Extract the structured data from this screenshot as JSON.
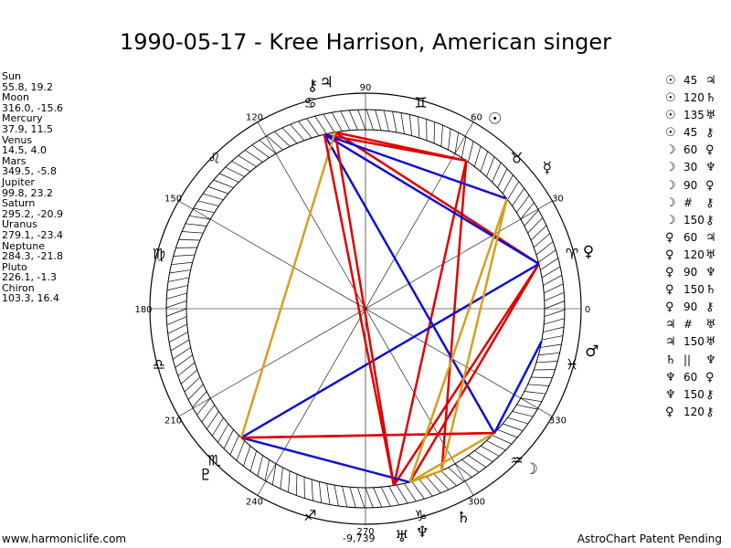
{
  "title": "1990-05-17 - Kree Harrison, American singer",
  "planets": [
    {
      "name": "Sun",
      "coords": "55.8, 19.2",
      "glyph": "☉"
    },
    {
      "name": "Moon",
      "coords": "316.0, -15.6",
      "glyph": "☽"
    },
    {
      "name": "Mercury",
      "coords": "37.9, 11.5",
      "glyph": "☿"
    },
    {
      "name": "Venus",
      "coords": "14.5, 4.0",
      "glyph": "♀"
    },
    {
      "name": "Mars",
      "coords": "349.5, -5.8",
      "glyph": "♂"
    },
    {
      "name": "Jupiter",
      "coords": "99.8, 23.2",
      "glyph": "♃"
    },
    {
      "name": "Saturn",
      "coords": "295.2, -20.9",
      "glyph": "♄"
    },
    {
      "name": "Uranus",
      "coords": "279.1, -23.4",
      "glyph": "♅"
    },
    {
      "name": "Neptune",
      "coords": "284.3, -21.8",
      "glyph": "♆"
    },
    {
      "name": "Pluto",
      "coords": "226.1, -1.3",
      "glyph": "♇"
    },
    {
      "name": "Chiron",
      "coords": "103.3, 16.4",
      "glyph": "⚷"
    }
  ],
  "aspects": [
    {
      "p1": "☉",
      "val": "45",
      "p2": "♃"
    },
    {
      "p1": "☉",
      "val": "120",
      "p2": "♄"
    },
    {
      "p1": "☉",
      "val": "135",
      "p2": "♅"
    },
    {
      "p1": "☉",
      "val": "45",
      "p2": "⚷"
    },
    {
      "p1": "☽",
      "val": "60",
      "p2": "♀"
    },
    {
      "p1": "☽",
      "val": "30",
      "p2": "♆"
    },
    {
      "p1": "☽",
      "val": "90",
      "p2": "♀"
    },
    {
      "p1": "☽",
      "val": "#",
      "p2": "⚷"
    },
    {
      "p1": "☽",
      "val": "150",
      "p2": "⚷"
    },
    {
      "p1": "♀",
      "val": "60",
      "p2": "♃"
    },
    {
      "p1": "♀",
      "val": "120",
      "p2": "♅"
    },
    {
      "p1": "♀",
      "val": "90",
      "p2": "♆"
    },
    {
      "p1": "♀",
      "val": "150",
      "p2": "♄"
    },
    {
      "p1": "♀",
      "val": "90",
      "p2": "⚷"
    },
    {
      "p1": "♃",
      "val": "#",
      "p2": "♅"
    },
    {
      "p1": "♃",
      "val": "150",
      "p2": "♅"
    },
    {
      "p1": "♄",
      "val": "||",
      "p2": "♆"
    },
    {
      "p1": "♆",
      "val": "60",
      "p2": "♀"
    },
    {
      "p1": "♆",
      "val": "150",
      "p2": "⚷"
    },
    {
      "p1": "♀",
      "val": "120",
      "p2": "⚷"
    }
  ],
  "degree_labels": [
    "0",
    "30",
    "60",
    "90",
    "120",
    "150",
    "180",
    "210",
    "240",
    "270",
    "300",
    "330"
  ],
  "score": "-9,739",
  "footer_left": "www.harmoniclife.com",
  "footer_right": "AstroChart Patent Pending",
  "chart_data": {
    "type": "astrology-wheel",
    "planet_longitudes": {
      "Sun": 55.8,
      "Moon": 316.0,
      "Mercury": 37.9,
      "Venus": 14.5,
      "Mars": 349.5,
      "Jupiter": 99.8,
      "Saturn": 295.2,
      "Uranus": 279.1,
      "Neptune": 284.3,
      "Pluto": 226.1,
      "Chiron": 103.3
    },
    "sign_glyphs": [
      "♈",
      "♉",
      "♊",
      "♋",
      "♌",
      "♍",
      "♎",
      "♏",
      "♐",
      "♑",
      "♒",
      "♓"
    ],
    "aspect_lines": [
      {
        "from": "Sun",
        "to": "Jupiter",
        "color": "#e00000",
        "style": "solid"
      },
      {
        "from": "Sun",
        "to": "Saturn",
        "color": "#e00000",
        "style": "solid"
      },
      {
        "from": "Sun",
        "to": "Uranus",
        "color": "#e00000",
        "style": "solid"
      },
      {
        "from": "Sun",
        "to": "Chiron",
        "color": "#e00000",
        "style": "solid"
      },
      {
        "from": "Moon",
        "to": "Pluto",
        "color": "#e00000",
        "style": "solid"
      },
      {
        "from": "Moon",
        "to": "Neptune",
        "color": "#d4a020",
        "style": "solid"
      },
      {
        "from": "Moon",
        "to": "Chiron",
        "color": "#e00000",
        "style": "dotted"
      },
      {
        "from": "Moon",
        "to": "Chiron",
        "color": "#1010d0",
        "style": "solid"
      },
      {
        "from": "Moon",
        "to": "Mars",
        "color": "#1010d0",
        "style": "solid"
      },
      {
        "from": "Venus",
        "to": "Jupiter",
        "color": "#e00000",
        "style": "solid"
      },
      {
        "from": "Venus",
        "to": "Uranus",
        "color": "#e00000",
        "style": "solid"
      },
      {
        "from": "Venus",
        "to": "Neptune",
        "color": "#e00000",
        "style": "solid"
      },
      {
        "from": "Venus",
        "to": "Pluto",
        "color": "#1010d0",
        "style": "solid"
      },
      {
        "from": "Venus",
        "to": "Chiron",
        "color": "#1010d0",
        "style": "solid"
      },
      {
        "from": "Jupiter",
        "to": "Uranus",
        "color": "#e00000",
        "style": "dotted"
      },
      {
        "from": "Jupiter",
        "to": "Uranus",
        "color": "#e00000",
        "style": "solid"
      },
      {
        "from": "Saturn",
        "to": "Neptune",
        "color": "#d4a020",
        "style": "solid"
      },
      {
        "from": "Neptune",
        "to": "Pluto",
        "color": "#1010d0",
        "style": "solid"
      },
      {
        "from": "Mercury",
        "to": "Chiron",
        "color": "#1010d0",
        "style": "solid"
      },
      {
        "from": "Mercury",
        "to": "Saturn",
        "color": "#d4a020",
        "style": "solid"
      },
      {
        "from": "Pluto",
        "to": "Jupiter",
        "color": "#d4a020",
        "style": "solid"
      },
      {
        "from": "Pluto",
        "to": "Moon",
        "color": "#e00000",
        "style": "solid"
      },
      {
        "from": "Chiron",
        "to": "Uranus",
        "color": "#e00000",
        "style": "solid"
      },
      {
        "from": "Mercury",
        "to": "Neptune",
        "color": "#d4a020",
        "style": "solid"
      }
    ]
  }
}
